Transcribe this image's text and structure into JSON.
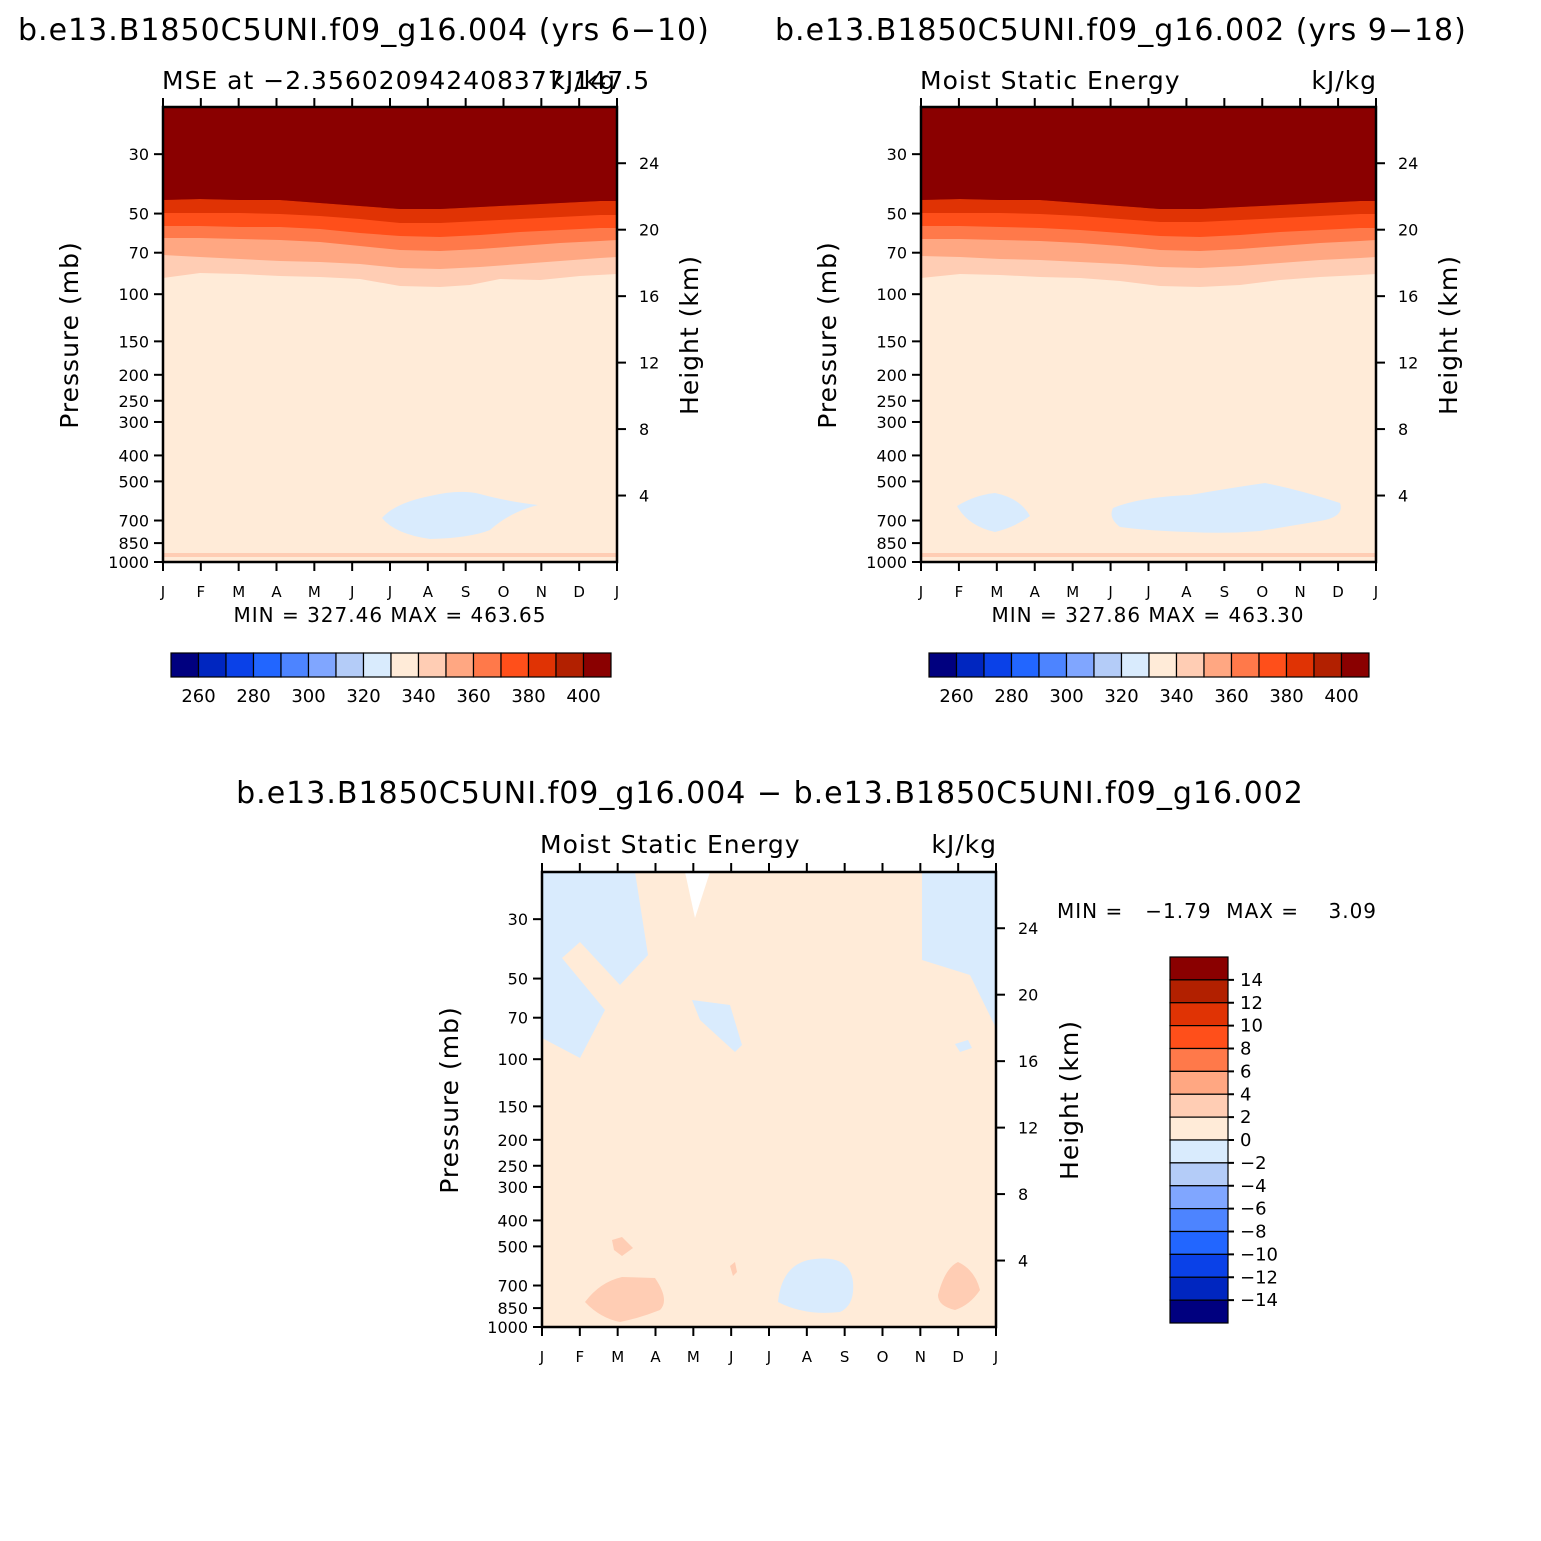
{
  "chart_data": [
    {
      "type": "contour",
      "case_title": "b.e13.B1850C5UNI.f09_g16.004 (yrs 6−10)",
      "left_title": "MSE at −2.356020942408377,147.5",
      "units": "kJ/kg",
      "ylabel": "Pressure (mb)",
      "ylabel_right": "Height (km)",
      "pressure_ticks": [
        "30",
        "50",
        "70",
        "100",
        "150",
        "200",
        "250",
        "300",
        "400",
        "500",
        "700",
        "850",
        "1000"
      ],
      "height_ticks": [
        "24",
        "20",
        "16",
        "12",
        "8",
        "4"
      ],
      "months": [
        "J",
        "F",
        "M",
        "A",
        "M",
        "J",
        "J",
        "A",
        "S",
        "O",
        "N",
        "D",
        "J"
      ],
      "min": "327.46",
      "max": "463.65",
      "stats_text": "MIN = 327.46 MAX = 463.65",
      "levels": [
        "260",
        "280",
        "300",
        "320",
        "340",
        "360",
        "380",
        "400"
      ]
    },
    {
      "type": "contour",
      "case_title": "b.e13.B1850C5UNI.f09_g16.002 (yrs 9−18)",
      "left_title": "Moist Static Energy",
      "units": "kJ/kg",
      "ylabel": "Pressure (mb)",
      "ylabel_right": "Height (km)",
      "pressure_ticks": [
        "30",
        "50",
        "70",
        "100",
        "150",
        "200",
        "250",
        "300",
        "400",
        "500",
        "700",
        "850",
        "1000"
      ],
      "height_ticks": [
        "24",
        "20",
        "16",
        "12",
        "8",
        "4"
      ],
      "months": [
        "J",
        "F",
        "M",
        "A",
        "M",
        "J",
        "J",
        "A",
        "S",
        "O",
        "N",
        "D",
        "J"
      ],
      "min": "327.86",
      "max": "463.30",
      "stats_text": "MIN = 327.86 MAX = 463.30",
      "levels": [
        "260",
        "280",
        "300",
        "320",
        "340",
        "360",
        "380",
        "400"
      ]
    },
    {
      "type": "contour",
      "case_title": "b.e13.B1850C5UNI.f09_g16.004 − b.e13.B1850C5UNI.f09_g16.002",
      "left_title": "Moist Static Energy",
      "units": "kJ/kg",
      "ylabel": "Pressure (mb)",
      "ylabel_right": "Height (km)",
      "pressure_ticks": [
        "30",
        "50",
        "70",
        "100",
        "150",
        "200",
        "250",
        "300",
        "400",
        "500",
        "700",
        "850",
        "1000"
      ],
      "height_ticks": [
        "24",
        "20",
        "16",
        "12",
        "8",
        "4"
      ],
      "months": [
        "J",
        "F",
        "M",
        "A",
        "M",
        "J",
        "J",
        "A",
        "S",
        "O",
        "N",
        "D",
        "J"
      ],
      "min": "−1.79",
      "max": "3.09",
      "stats_text": "MIN =   −1.79  MAX =    3.09",
      "levels": [
        "14",
        "12",
        "10",
        "8",
        "6",
        "4",
        "2",
        "0",
        "−2",
        "−4",
        "−6",
        "−8",
        "−10",
        "−12",
        "−14"
      ]
    }
  ],
  "colors": {
    "abs_scale": [
      "#00007f",
      "#0026c0",
      "#0a41e8",
      "#2266ff",
      "#4d84ff",
      "#80a6ff",
      "#b4ccf8",
      "#d9ebfd",
      "#ffebd8",
      "#ffcdb4",
      "#ffa782",
      "#ff794a",
      "#ff4f1a",
      "#e03304",
      "#b22000",
      "#8a0000"
    ],
    "diff_scale": [
      "#8a0000",
      "#b22000",
      "#e03304",
      "#ff4f1a",
      "#ff794a",
      "#ffa782",
      "#ffcdb4",
      "#ffebd8",
      "#d9ebfd",
      "#b4ccf8",
      "#80a6ff",
      "#4d84ff",
      "#2266ff",
      "#0a41e8",
      "#0026c0",
      "#00007f"
    ]
  }
}
